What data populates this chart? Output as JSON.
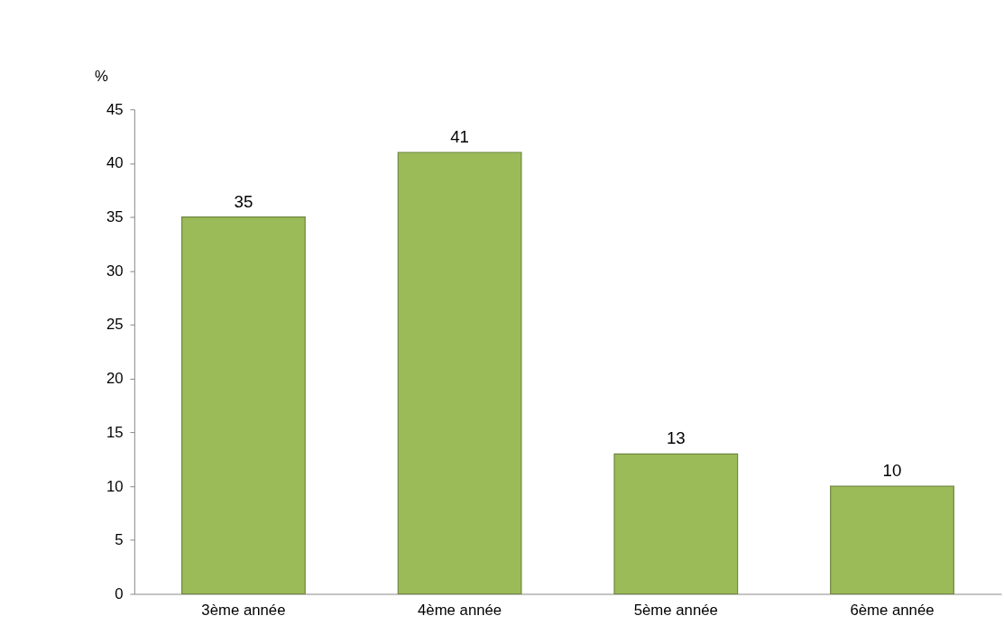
{
  "chart_data": {
    "type": "bar",
    "ylabel": "%",
    "categories": [
      "3ème année",
      "4ème année",
      "5ème année",
      "6ème année"
    ],
    "values": [
      35,
      41,
      13,
      10
    ],
    "color": "#9bbb59",
    "ylim": [
      0,
      45
    ],
    "yticks": [
      0,
      5,
      10,
      15,
      20,
      25,
      30,
      35,
      40,
      45
    ],
    "data_labels": true,
    "grid": false
  }
}
